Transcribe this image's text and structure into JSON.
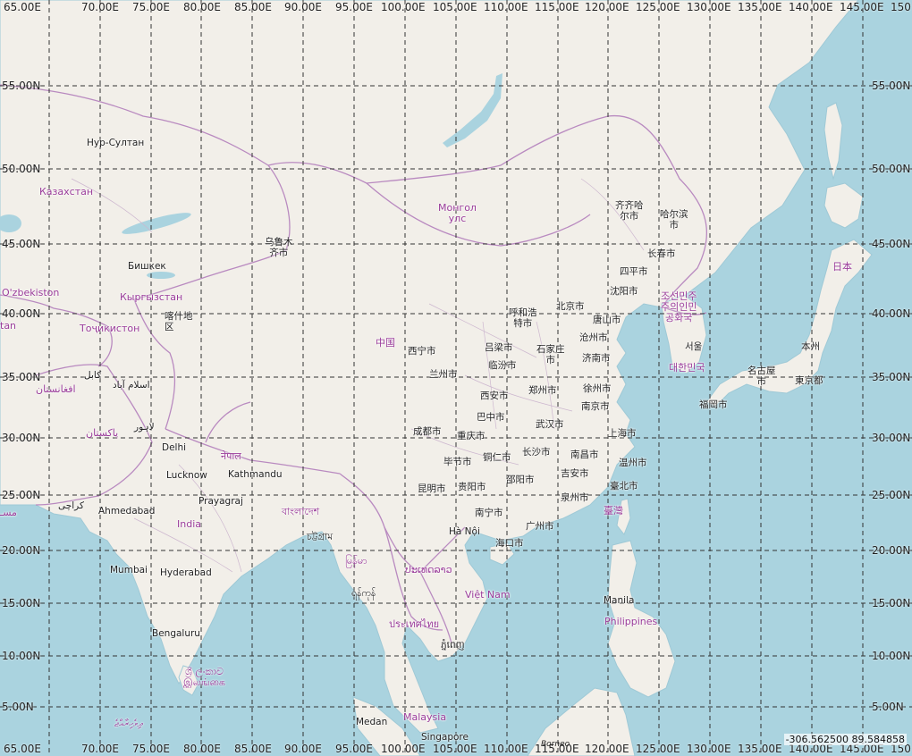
{
  "map": {
    "grid": {
      "longitudes": [
        "65.00E",
        "70.00E",
        "75.00E",
        "80.00E",
        "85.00E",
        "90.00E",
        "95.00E",
        "100.00E",
        "105.00E",
        "110.00E",
        "115.00E",
        "120.00E",
        "125.00E",
        "130.00E",
        "135.00E",
        "140.00E",
        "145.00E",
        "150"
      ],
      "bottom_longitudes": [
        "65.00E",
        "70.00E",
        "75.00E",
        "80.00E",
        "85.00E",
        "90.00E",
        "95.00E",
        "100.00E",
        "105.00E",
        "110.00E",
        "115.00E",
        "120.00E",
        "125.00E",
        "130.00E",
        "135.00E",
        "140.00E",
        "145.00E",
        "150"
      ],
      "latitudes": [
        "55.00N",
        "50.00N",
        "45.00N",
        "40.00N",
        "35.00N",
        "30.00N",
        "25.00N",
        "20.00N",
        "15.00N",
        "10.00N",
        "5.00N"
      ]
    },
    "countries": [
      {
        "id": "kz",
        "name": "Казахстан"
      },
      {
        "id": "mn",
        "name": "Монгол\nулс"
      },
      {
        "id": "kg",
        "name": "Кыргызстан"
      },
      {
        "id": "uz",
        "name": "O'zbekiston"
      },
      {
        "id": "tj",
        "name": "Тоҷикистон"
      },
      {
        "id": "tm",
        "name": "tan"
      },
      {
        "id": "af",
        "name": "افغانستان"
      },
      {
        "id": "pk",
        "name": "پاکستان"
      },
      {
        "id": "cn",
        "name": "中国"
      },
      {
        "id": "np",
        "name": "नेपाल"
      },
      {
        "id": "in",
        "name": "India"
      },
      {
        "id": "bd",
        "name": "বাংলাদেশ"
      },
      {
        "id": "mm",
        "name": "မြန်မာ"
      },
      {
        "id": "la",
        "name": "ປະເທດລາວ"
      },
      {
        "id": "vn",
        "name": "Việt Nam"
      },
      {
        "id": "th",
        "name": "ประเทศไทย"
      },
      {
        "id": "lk",
        "name": "ශ්‍රී ලංකාව\nஇலங்கை"
      },
      {
        "id": "my",
        "name": "Malaysia"
      },
      {
        "id": "ph",
        "name": "Philippines"
      },
      {
        "id": "kp",
        "name": "조선민주\n주의인민\n공화국"
      },
      {
        "id": "kr",
        "name": "대한민국"
      },
      {
        "id": "jp",
        "name": "日本"
      },
      {
        "id": "tw",
        "name": "臺灣"
      },
      {
        "id": "mv",
        "name": "ދިވެހިރާއްޖެ"
      },
      {
        "id": "om",
        "name": "مسـ"
      }
    ],
    "cities": [
      {
        "id": "astana",
        "name": "Нур-Султан"
      },
      {
        "id": "bishkek",
        "name": "Бишкек"
      },
      {
        "id": "urumqi",
        "name": "乌鲁木\n齐市"
      },
      {
        "id": "kashgar",
        "name": "喀什地\n区"
      },
      {
        "id": "kabul",
        "name": "كابل"
      },
      {
        "id": "islamabad",
        "name": "اسلام آباد"
      },
      {
        "id": "lahore",
        "name": "لاہور"
      },
      {
        "id": "karachi",
        "name": "کراچی"
      },
      {
        "id": "delhi",
        "name": "Delhi"
      },
      {
        "id": "lucknow",
        "name": "Lucknow"
      },
      {
        "id": "kathmandu",
        "name": "Kathmandu"
      },
      {
        "id": "prayagraj",
        "name": "Prayagraj"
      },
      {
        "id": "ahmedabad",
        "name": "Ahmedabad"
      },
      {
        "id": "mumbai",
        "name": "Mumbai"
      },
      {
        "id": "hyderabad",
        "name": "Hyderabad"
      },
      {
        "id": "bengaluru",
        "name": "Bengaluru"
      },
      {
        "id": "chittagong",
        "name": "চট্টগ্রাম"
      },
      {
        "id": "yangon",
        "name": "ရန်ကုန်"
      },
      {
        "id": "hanoi",
        "name": "Hà Nội"
      },
      {
        "id": "phnompenh",
        "name": "ភ្នំពេញ"
      },
      {
        "id": "medan",
        "name": "Medan"
      },
      {
        "id": "singapore",
        "name": "Singapore"
      },
      {
        "id": "manila",
        "name": "Manila"
      },
      {
        "id": "xining",
        "name": "西宁市"
      },
      {
        "id": "lanzhou",
        "name": "兰州市"
      },
      {
        "id": "hohhot",
        "name": "呼和浩\n特市"
      },
      {
        "id": "beijing",
        "name": "北京市"
      },
      {
        "id": "tangshan",
        "name": "唐山市"
      },
      {
        "id": "lvliang",
        "name": "吕梁市"
      },
      {
        "id": "shijiazhuang",
        "name": "石家庄\n市"
      },
      {
        "id": "cangzhou",
        "name": "沧州市"
      },
      {
        "id": "linfen",
        "name": "临汾市"
      },
      {
        "id": "jinan",
        "name": "济南市"
      },
      {
        "id": "xian",
        "name": "西安市"
      },
      {
        "id": "zhengzhou",
        "name": "郑州市"
      },
      {
        "id": "xuzhou",
        "name": "徐州市"
      },
      {
        "id": "nanjing",
        "name": "南京市"
      },
      {
        "id": "bazhong",
        "name": "巴中市"
      },
      {
        "id": "chengdu",
        "name": "成都市"
      },
      {
        "id": "wuhan",
        "name": "武汉市"
      },
      {
        "id": "shanghai",
        "name": "上海市"
      },
      {
        "id": "chongqing",
        "name": "重庆市"
      },
      {
        "id": "bijie",
        "name": "毕节市"
      },
      {
        "id": "tongren",
        "name": "铜仁市"
      },
      {
        "id": "changsha",
        "name": "长沙市"
      },
      {
        "id": "nanchang",
        "name": "南昌市"
      },
      {
        "id": "wenzhou",
        "name": "温州市"
      },
      {
        "id": "shaoyang",
        "name": "邵阳市"
      },
      {
        "id": "jian",
        "name": "吉安市"
      },
      {
        "id": "kunming",
        "name": "昆明市"
      },
      {
        "id": "guiyang",
        "name": "贵阳市"
      },
      {
        "id": "taipei",
        "name": "臺北市"
      },
      {
        "id": "quanzhou",
        "name": "泉州市"
      },
      {
        "id": "nanning",
        "name": "南宁市"
      },
      {
        "id": "guangzhou",
        "name": "广州市"
      },
      {
        "id": "haikou",
        "name": "海口市"
      },
      {
        "id": "qiqihar",
        "name": "齐齐哈\n尔市"
      },
      {
        "id": "harbin",
        "name": "哈尔滨\n市"
      },
      {
        "id": "changchun",
        "name": "长春市"
      },
      {
        "id": "siping",
        "name": "四平市"
      },
      {
        "id": "shenyang",
        "name": "沈阳市"
      },
      {
        "id": "seoul",
        "name": "서울"
      },
      {
        "id": "fukuoka",
        "name": "福岡市"
      },
      {
        "id": "nagoya",
        "name": "名古屋\n市"
      },
      {
        "id": "tokyo",
        "name": "東京都"
      },
      {
        "id": "honshu",
        "name": "本州"
      }
    ],
    "islands": [
      {
        "id": "borneo",
        "name": "Borneo"
      }
    ],
    "coordinate_readout": "-306.562500 89.584858",
    "colors": {
      "water": "#aad3df",
      "land": "#f2efe9",
      "border": "#b98ac0",
      "grid": "#333333",
      "country_label": "#9a3c9a"
    }
  }
}
